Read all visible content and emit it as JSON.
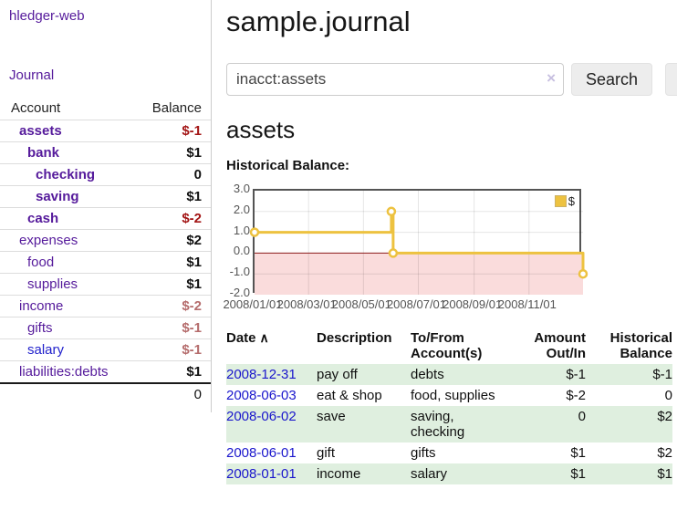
{
  "app": {
    "title": "hledger-web"
  },
  "nav": {
    "journal": "Journal"
  },
  "sidebar": {
    "headers": {
      "account": "Account",
      "balance": "Balance"
    },
    "accounts": [
      {
        "name": "assets",
        "indent": 1,
        "bold": true,
        "link_color": "purple",
        "balance": "$-1",
        "balance_style": "neg"
      },
      {
        "name": "bank",
        "indent": 2,
        "bold": true,
        "link_color": "purple",
        "balance": "$1",
        "balance_style": "pos"
      },
      {
        "name": "checking",
        "indent": 3,
        "bold": true,
        "link_color": "purple",
        "balance": "0",
        "balance_style": "pos"
      },
      {
        "name": "saving",
        "indent": 3,
        "bold": true,
        "link_color": "purple",
        "balance": "$1",
        "balance_style": "pos"
      },
      {
        "name": "cash",
        "indent": 2,
        "bold": true,
        "link_color": "purple",
        "balance": "$-2",
        "balance_style": "neg"
      },
      {
        "name": "expenses",
        "indent": 1,
        "bold": false,
        "link_color": "purple",
        "balance": "$2",
        "balance_style": "pos"
      },
      {
        "name": "food",
        "indent": 2,
        "bold": false,
        "link_color": "purple",
        "balance": "$1",
        "balance_style": "pos"
      },
      {
        "name": "supplies",
        "indent": 2,
        "bold": false,
        "link_color": "purple",
        "balance": "$1",
        "balance_style": "pos"
      },
      {
        "name": "income",
        "indent": 1,
        "bold": false,
        "link_color": "purple",
        "balance": "$-2",
        "balance_style": "neg-muted"
      },
      {
        "name": "gifts",
        "indent": 2,
        "bold": false,
        "link_color": "purple",
        "balance": "$-1",
        "balance_style": "neg-muted"
      },
      {
        "name": "salary",
        "indent": 2,
        "bold": false,
        "link_color": "blue",
        "balance": "$-1",
        "balance_style": "neg-muted"
      },
      {
        "name": "liabilities:debts",
        "indent": 1,
        "bold": false,
        "link_color": "purple",
        "balance": "$1",
        "balance_style": "pos"
      }
    ],
    "total": "0"
  },
  "header": {
    "title": "sample.journal"
  },
  "search": {
    "value": "inacct:assets",
    "clear_icon": "×",
    "button_label": "Search",
    "help_label": "?"
  },
  "account_page": {
    "heading": "assets",
    "chart_label": "Historical Balance:"
  },
  "chart_data": {
    "type": "line",
    "step": true,
    "title": "Historical Balance:",
    "series": [
      {
        "name": "$",
        "color": "#edc240",
        "points": [
          [
            "2008-01-01",
            1.0
          ],
          [
            "2008-06-01",
            2.0
          ],
          [
            "2008-06-03",
            0.0
          ],
          [
            "2008-12-31",
            -1.0
          ]
        ]
      }
    ],
    "xlim": [
      "2008-01-01",
      "2008-12-31"
    ],
    "ylim": [
      -2,
      3
    ],
    "x_tick_labels": [
      "2008/01/01",
      "2008/03/01",
      "2008/05/01",
      "2008/07/01",
      "2008/09/01",
      "2008/11/01"
    ],
    "y_tick_labels": [
      "3.0",
      "2.0",
      "1.0",
      "0.0",
      "-1.0",
      "-2.0"
    ],
    "grid": true,
    "legend": "$",
    "legend_position": "top-right",
    "negative_region_fill": "#fadcdc",
    "zero_line_color": "#8b1a1a"
  },
  "register": {
    "columns": [
      {
        "label": "Date"
      },
      {
        "label": "Description"
      },
      {
        "label": "To/From Account(s)"
      },
      {
        "label": "Amount Out/In"
      },
      {
        "label": "Historical Balance"
      }
    ],
    "sort_icon": "∧",
    "rows": [
      {
        "date": "2008-12-31",
        "description": "pay off",
        "accounts": "debts",
        "amount": "$-1",
        "amount_style": "neg",
        "balance": "$-1",
        "balance_style": "neg"
      },
      {
        "date": "2008-06-03",
        "description": "eat & shop",
        "accounts": "food, supplies",
        "amount": "$-2",
        "amount_style": "neg",
        "balance": "0",
        "balance_style": "pos"
      },
      {
        "date": "2008-06-02",
        "description": "save",
        "accounts": "saving, checking",
        "amount": "0",
        "amount_style": "pos",
        "balance": "$2",
        "balance_style": "pos"
      },
      {
        "date": "2008-06-01",
        "description": "gift",
        "accounts": "gifts",
        "amount": "$1",
        "amount_style": "pos",
        "balance": "$2",
        "balance_style": "pos"
      },
      {
        "date": "2008-01-01",
        "description": "income",
        "accounts": "salary",
        "amount": "$1",
        "amount_style": "pos",
        "balance": "$1",
        "balance_style": "pos"
      }
    ]
  }
}
